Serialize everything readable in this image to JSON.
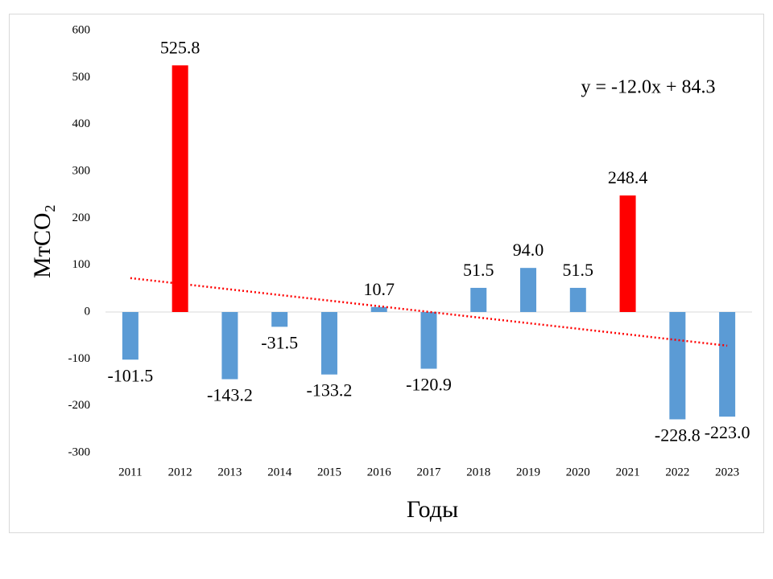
{
  "chart_data": {
    "type": "bar",
    "x_label": "Годы",
    "y_label": "МтCO₂",
    "categories": [
      "2011",
      "2012",
      "2013",
      "2014",
      "2015",
      "2016",
      "2017",
      "2018",
      "2019",
      "2020",
      "2021",
      "2022",
      "2023"
    ],
    "values": [
      -101.5,
      525.8,
      -143.2,
      -31.5,
      -133.2,
      10.7,
      -120.9,
      51.5,
      94.0,
      51.5,
      248.4,
      -228.8,
      -223.0
    ],
    "value_labels": [
      "-101.5",
      "525.8",
      "-143.2",
      "-31.5",
      "-133.2",
      "10.7",
      "-120.9",
      "51.5",
      "94.0",
      "51.5",
      "248.4",
      "-228.8",
      "-223.0"
    ],
    "colors": [
      "#5b9bd5",
      "#ff0000",
      "#5b9bd5",
      "#5b9bd5",
      "#5b9bd5",
      "#5b9bd5",
      "#5b9bd5",
      "#5b9bd5",
      "#5b9bd5",
      "#5b9bd5",
      "#ff0000",
      "#5b9bd5",
      "#5b9bd5"
    ],
    "ylim": [
      -300,
      600
    ],
    "yticks": [
      -300,
      -200,
      -100,
      0,
      100,
      200,
      300,
      400,
      500,
      600
    ],
    "trendline": {
      "label": "y = -12.0x + 84.3",
      "slope": -12.0,
      "intercept": 84.3,
      "color": "#ff0000"
    }
  }
}
